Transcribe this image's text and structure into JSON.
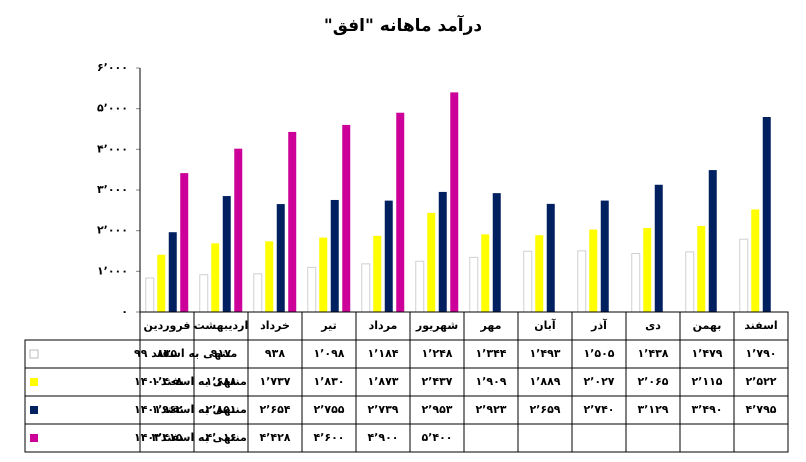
{
  "chart_data": {
    "type": "bar",
    "title": "درآمد ماهانه \"افق\"",
    "categories": [
      "فروردین",
      "اردیبهشت",
      "خرداد",
      "تیر",
      "مرداد",
      "شهریور",
      "مهر",
      "آبان",
      "آذر",
      "دی",
      "بهمن",
      "اسفند"
    ],
    "series": [
      {
        "name": "منتهی به اسفند ۹۹",
        "color": "#ffffff",
        "values": [
          835,
          917,
          938,
          1098,
          1184,
          1248,
          1344,
          1493,
          1505,
          1438,
          1479,
          1790
        ],
        "value_labels": [
          "۸۳۵",
          "۹۱۷",
          "۹۳۸",
          "۱٬۰۹۸",
          "۱٬۱۸۴",
          "۱٬۲۴۸",
          "۱٬۳۴۴",
          "۱٬۴۹۳",
          "۱٬۵۰۵",
          "۱٬۴۳۸",
          "۱٬۴۷۹",
          "۱٬۷۹۰"
        ]
      },
      {
        "name": "منتهی به اسفند۱۴۰۰",
        "color": "#ffff00",
        "values": [
          1408,
          1688,
          1737,
          1830,
          1873,
          2437,
          1909,
          1889,
          2027,
          2065,
          2115,
          2522
        ],
        "value_labels": [
          "۱٬۴۰۸",
          "۱٬۶۸۸",
          "۱٬۷۳۷",
          "۱٬۸۳۰",
          "۱٬۸۷۳",
          "۲٬۴۳۷",
          "۱٬۹۰۹",
          "۱٬۸۸۹",
          "۲٬۰۲۷",
          "۲٬۰۶۵",
          "۲٬۱۱۵",
          "۲٬۵۲۲"
        ]
      },
      {
        "name": "منتهی به اسفند۱۴۰۱",
        "color": "#002060",
        "values": [
          1962,
          2851,
          2654,
          2755,
          2739,
          2953,
          2923,
          2659,
          2740,
          3129,
          3490,
          4795
        ],
        "value_labels": [
          "۱٬۹۶۲",
          "۲٬۸۵۱",
          "۲٬۶۵۴",
          "۲٬۷۵۵",
          "۲٬۷۳۹",
          "۲٬۹۵۳",
          "۲٬۹۲۳",
          "۲٬۶۵۹",
          "۲٬۷۴۰",
          "۳٬۱۲۹",
          "۳٬۴۹۰",
          "۴٬۷۹۵"
        ]
      },
      {
        "name": "منتهی به اسفند۱۴۰۲",
        "color": "#cc0099",
        "values": [
          3415,
          4016,
          4428,
          4600,
          4900,
          5400,
          null,
          null,
          null,
          null,
          null,
          null
        ],
        "value_labels": [
          "۳٬۴۱۵",
          "۴٬۰۱۶",
          "۴٬۴۲۸",
          "۴٬۶۰۰",
          "۴٬۹۰۰",
          "۵٬۴۰۰",
          null,
          null,
          null,
          null,
          null,
          null
        ]
      }
    ],
    "ylim": [
      0,
      6000
    ],
    "yticks": [
      {
        "value": 0,
        "label": "۰"
      },
      {
        "value": 1000,
        "label": "۱٬۰۰۰"
      },
      {
        "value": 2000,
        "label": "۲٬۰۰۰"
      },
      {
        "value": 3000,
        "label": "۳٬۰۰۰"
      },
      {
        "value": 4000,
        "label": "۴٬۰۰۰"
      },
      {
        "value": 5000,
        "label": "۵٬۰۰۰"
      },
      {
        "value": 6000,
        "label": "۶٬۰۰۰"
      }
    ],
    "grid": false
  }
}
